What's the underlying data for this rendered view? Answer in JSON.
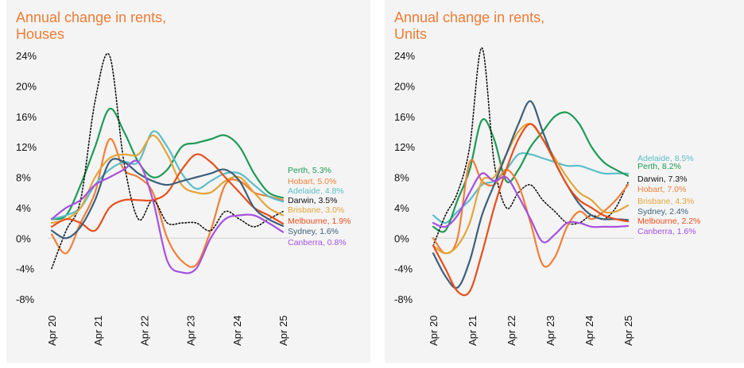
{
  "chart_data": [
    {
      "type": "line",
      "title": "Annual change in rents,\nHouses",
      "x_ticks": [
        "Apr 20",
        "Apr 21",
        "Apr 22",
        "Apr 23",
        "Apr 24",
        "Apr 25"
      ],
      "y_ticks": [
        "24%",
        "20%",
        "16%",
        "12%",
        "8%",
        "4%",
        "0%",
        "-4%",
        "-8%"
      ],
      "x_range": [
        0,
        60
      ],
      "y_range": [
        -8,
        24
      ],
      "grid": false,
      "x_step_months": 3,
      "series": [
        {
          "name": "Perth",
          "label": "Perth, 5.3%",
          "color": "#1e9b55",
          "style": "solid",
          "values": [
            2.5,
            3,
            7,
            12,
            17,
            14,
            10,
            8,
            9,
            12,
            12.5,
            13,
            13.5,
            12,
            8.5,
            6,
            5.3
          ]
        },
        {
          "name": "Hobart",
          "label": "Hobart, 5.0%",
          "color": "#f07f38",
          "style": "solid",
          "values": [
            0.5,
            -2,
            2,
            6,
            13,
            9,
            8,
            6,
            0,
            -3,
            -3.5,
            1,
            7,
            7.5,
            6,
            5.5,
            5.0
          ]
        },
        {
          "name": "Adelaide",
          "label": "Adelaide, 4.8%",
          "color": "#5bbec8",
          "style": "solid",
          "values": [
            2.5,
            3,
            4,
            7,
            9,
            10,
            10,
            14,
            12,
            8.5,
            6.5,
            7.5,
            8.5,
            8.5,
            7,
            5.5,
            4.8
          ]
        },
        {
          "name": "Darwin",
          "label": "Darwin, 3.5%",
          "color": "#111111",
          "style": "dotted",
          "values": [
            -4,
            1,
            5,
            18,
            24,
            10,
            2.5,
            5,
            2,
            2,
            2,
            1,
            3.5,
            2.5,
            1.5,
            2.5,
            3.5
          ]
        },
        {
          "name": "Brisbane",
          "label": "Brisbane, 3.0%",
          "color": "#e3a53a",
          "style": "solid",
          "values": [
            2,
            2.5,
            4,
            8,
            10.5,
            11,
            11,
            13.5,
            11,
            7,
            6,
            6,
            7.5,
            8,
            6,
            4,
            3.0
          ]
        },
        {
          "name": "Melbourne",
          "label": "Melbourne, 1.9%",
          "color": "#e84e1b",
          "style": "solid",
          "values": [
            1.5,
            2.5,
            2,
            1,
            4,
            5,
            5,
            5,
            6,
            9,
            11,
            10,
            8,
            6,
            4,
            3,
            1.9
          ]
        },
        {
          "name": "Sydney",
          "label": "Sydney, 1.6%",
          "color": "#3d5f7d",
          "style": "solid",
          "values": [
            1,
            0,
            1.5,
            5,
            10,
            10,
            8.5,
            7.5,
            7,
            7.5,
            8,
            8.5,
            9,
            7.5,
            4,
            2.5,
            1.6
          ]
        },
        {
          "name": "Canberra",
          "label": "Canberra, 0.8%",
          "color": "#a550e0",
          "style": "solid",
          "values": [
            2.5,
            4,
            5,
            7,
            8,
            9,
            10,
            5,
            -3,
            -4.5,
            -4,
            0,
            2.5,
            3,
            3,
            2,
            0.8
          ]
        }
      ]
    },
    {
      "type": "line",
      "title": "Annual change in rents,\nUnits",
      "x_ticks": [
        "Apr 20",
        "Apr 21",
        "Apr 22",
        "Apr 23",
        "Apr 24",
        "Apr 25"
      ],
      "y_ticks": [
        "24%",
        "20%",
        "16%",
        "12%",
        "8%",
        "4%",
        "0%",
        "-4%",
        "-8%"
      ],
      "x_range": [
        0,
        60
      ],
      "y_range": [
        -8,
        24
      ],
      "grid": false,
      "x_step_months": 3,
      "series": [
        {
          "name": "Adelaide",
          "label": "Adelaide, 8.5%",
          "color": "#5bbec8",
          "style": "solid",
          "values": [
            3,
            2,
            3.5,
            5,
            7,
            7.5,
            9,
            11,
            11,
            10.5,
            10,
            9.5,
            9.5,
            9,
            8.5,
            8.5,
            8.5
          ]
        },
        {
          "name": "Perth",
          "label": "Perth, 8.2%",
          "color": "#1e9b55",
          "style": "solid",
          "values": [
            1.5,
            1,
            5,
            9,
            15.5,
            13,
            7.5,
            9,
            12,
            14,
            16,
            16.5,
            15,
            12,
            10,
            9,
            8.2
          ]
        },
        {
          "name": "Darwin",
          "label": "Darwin, 7.3%",
          "color": "#111111",
          "style": "dotted",
          "values": [
            -1,
            3,
            6,
            12,
            25,
            10,
            4,
            6,
            7,
            5,
            3.5,
            2,
            2,
            3,
            2.5,
            4,
            7.3
          ]
        },
        {
          "name": "Hobart",
          "label": "Hobart, 7.0%",
          "color": "#f07f38",
          "style": "solid",
          "values": [
            0,
            -2,
            0,
            10,
            7.5,
            7,
            9,
            7,
            2,
            -3.5,
            -2.5,
            1.5,
            3.5,
            2.5,
            3.5,
            5,
            7.0
          ]
        },
        {
          "name": "Brisbane",
          "label": "Brisbane, 4.3%",
          "color": "#e3a53a",
          "style": "solid",
          "values": [
            -1,
            -2,
            -1,
            2,
            7.5,
            8,
            11,
            14,
            15,
            13,
            10.5,
            8,
            6,
            5,
            3.5,
            3.5,
            4.3
          ]
        },
        {
          "name": "Sydney",
          "label": "Sydney, 2.4%",
          "color": "#3d5f7d",
          "style": "solid",
          "values": [
            -2,
            -5,
            -6.5,
            -3,
            3,
            7,
            11,
            15,
            18,
            14,
            10,
            7,
            4.5,
            3,
            2.5,
            2.5,
            2.4
          ]
        },
        {
          "name": "Melbourne",
          "label": "Melbourne, 2.2%",
          "color": "#e84e1b",
          "style": "solid",
          "values": [
            -1,
            -4,
            -7,
            -7,
            -2,
            4,
            9,
            13,
            15,
            13,
            10,
            7,
            5,
            4,
            3,
            2.5,
            2.2
          ]
        },
        {
          "name": "Canberra",
          "label": "Canberra, 1.6%",
          "color": "#a550e0",
          "style": "solid",
          "values": [
            2,
            1.5,
            3,
            6,
            8.5,
            7.5,
            8,
            5.5,
            2.5,
            -0.5,
            0.5,
            2,
            2,
            1.5,
            1.5,
            1.5,
            1.6
          ]
        }
      ]
    }
  ]
}
